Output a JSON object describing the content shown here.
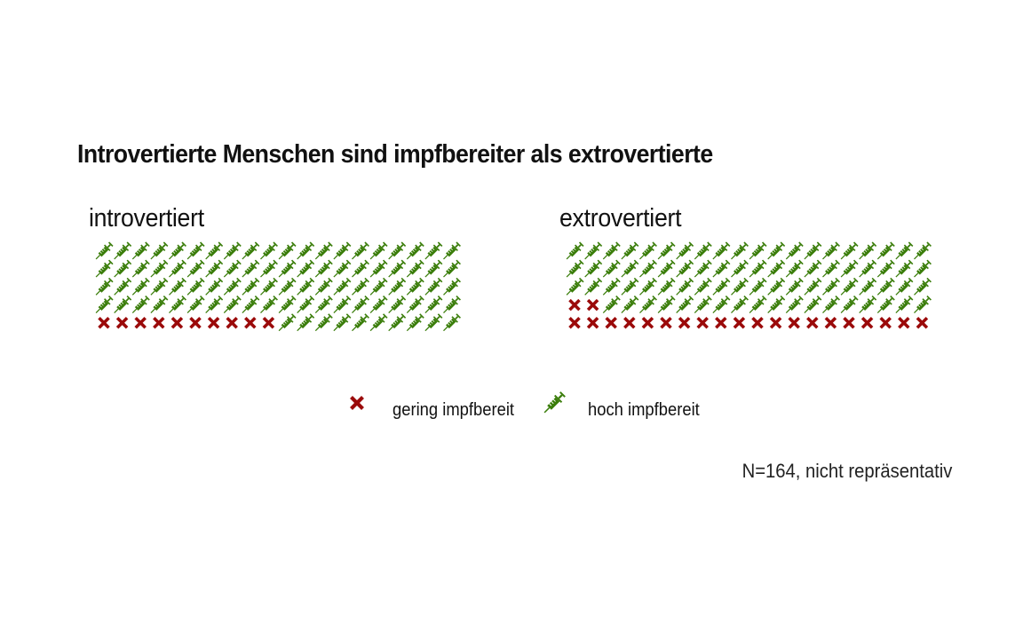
{
  "chart_data": {
    "type": "waffle",
    "title": "Introvertierte Menschen sind impfbereiter als extrovertierte",
    "caption": "N=164, nicht repräsentativ",
    "colors": {
      "low": "#9b0a0a",
      "high": "#3a7d0a"
    },
    "icons": {
      "low": "cross-icon",
      "high": "syringe-icon"
    },
    "legend": {
      "position": "bottom",
      "low_label": "gering impfbereit",
      "high_label": "hoch impfbereit"
    },
    "panels": [
      {
        "name": "introvertiert",
        "rows": 5,
        "columns": 20,
        "low": 10,
        "high": 90
      },
      {
        "name": "extrovertiert",
        "rows": 5,
        "columns": 20,
        "low": 22,
        "high": 78
      }
    ]
  }
}
